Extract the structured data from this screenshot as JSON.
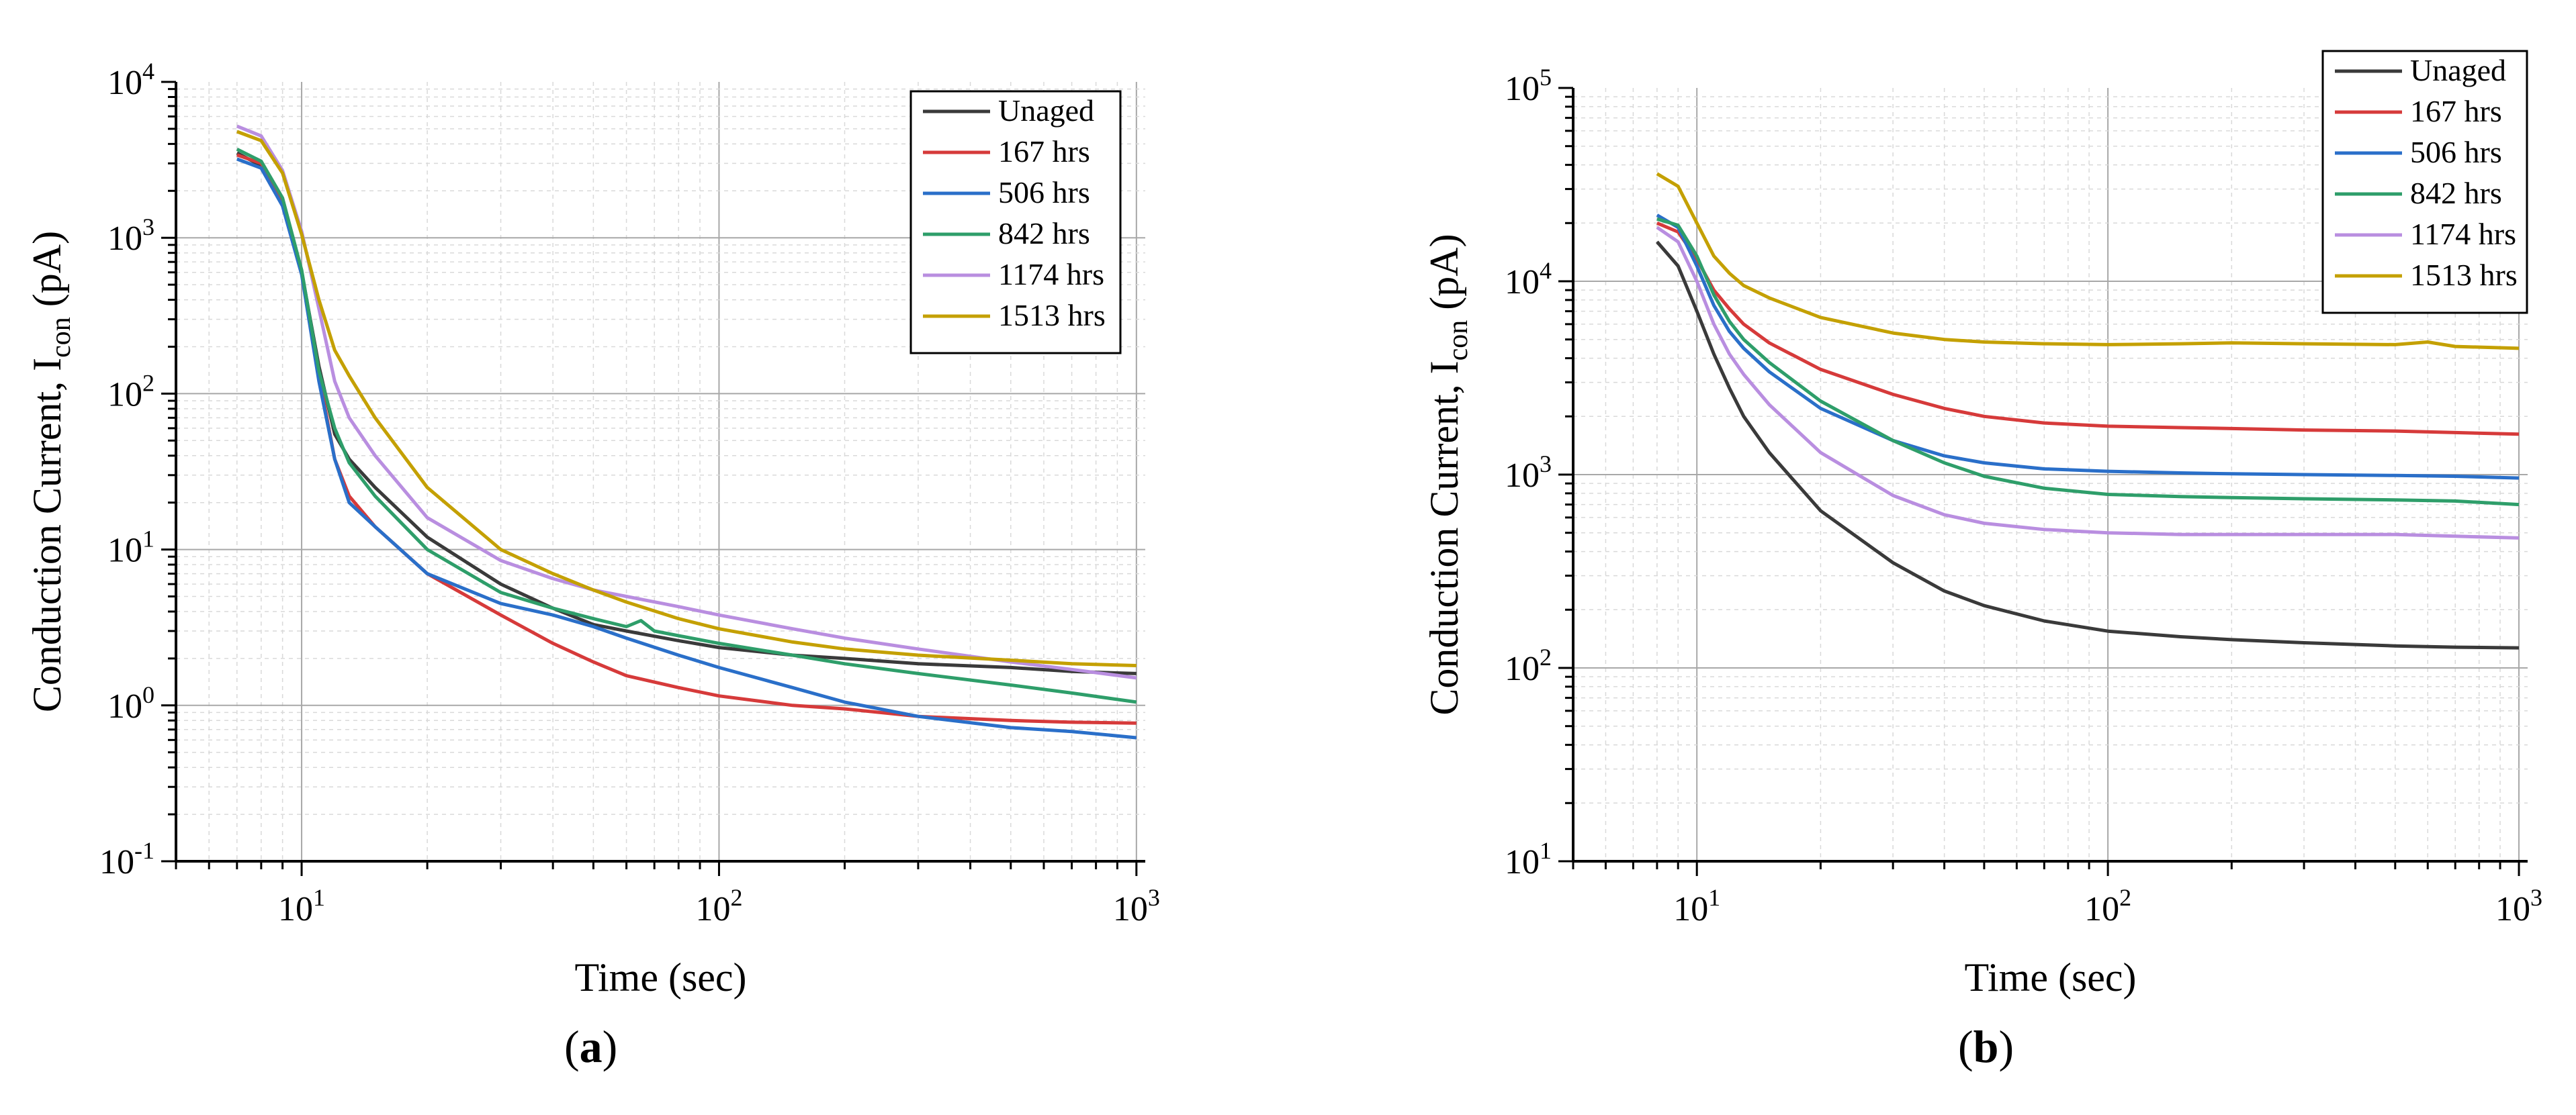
{
  "colors": {
    "Unaged": "#3a3a3a",
    "167 hrs": "#d63a3a",
    "506 hrs": "#2a6fc9",
    "842 hrs": "#2e9e6a",
    "1174 hrs": "#b98ee0",
    "1513 hrs": "#c4a000"
  },
  "chart_data": [
    {
      "type": "line",
      "panel_label": "a",
      "title": "",
      "xlabel": "Time (sec)",
      "ylabel_main": "Conduction Current, I",
      "ylabel_sub": "con",
      "ylabel_unit": " (pA)",
      "xscale": "log",
      "yscale": "log",
      "xlim": [
        5,
        1050
      ],
      "ylim": [
        0.1,
        10000
      ],
      "xticks": [
        {
          "value": 10,
          "base": "10",
          "exp": "1"
        },
        {
          "value": 100,
          "base": "10",
          "exp": "2"
        },
        {
          "value": 1000,
          "base": "10",
          "exp": "3"
        }
      ],
      "yticks": [
        {
          "value": 0.1,
          "base": "10",
          "exp": "-1"
        },
        {
          "value": 1,
          "base": "10",
          "exp": "0"
        },
        {
          "value": 10,
          "base": "10",
          "exp": "1"
        },
        {
          "value": 100,
          "base": "10",
          "exp": "2"
        },
        {
          "value": 1000,
          "base": "10",
          "exp": "3"
        },
        {
          "value": 10000,
          "base": "10",
          "exp": "4"
        }
      ],
      "grid": true,
      "legend_position": "top-right",
      "series": [
        {
          "name": "Unaged",
          "x": [
            7,
            8,
            9,
            10,
            11,
            12,
            13,
            15,
            20,
            30,
            40,
            50,
            60,
            80,
            100,
            150,
            200,
            300,
            500,
            700,
            1000
          ],
          "y": [
            3500,
            2900,
            1700,
            600,
            150,
            55,
            38,
            25,
            12,
            6,
            4.2,
            3.3,
            3.0,
            2.6,
            2.35,
            2.1,
            2.0,
            1.85,
            1.75,
            1.65,
            1.6
          ]
        },
        {
          "name": "167 hrs",
          "x": [
            7,
            8,
            9,
            10,
            11,
            12,
            13,
            15,
            20,
            30,
            40,
            50,
            60,
            80,
            100,
            150,
            200,
            300,
            500,
            700,
            1000
          ],
          "y": [
            3400,
            3000,
            1700,
            600,
            130,
            38,
            22,
            14,
            7,
            3.8,
            2.5,
            1.9,
            1.55,
            1.3,
            1.15,
            1.0,
            0.95,
            0.85,
            0.8,
            0.78,
            0.77
          ]
        },
        {
          "name": "506 hrs",
          "x": [
            7,
            8,
            9,
            10,
            11,
            12,
            13,
            15,
            20,
            30,
            40,
            50,
            60,
            80,
            100,
            150,
            200,
            300,
            500,
            700,
            1000
          ],
          "y": [
            3200,
            2800,
            1600,
            580,
            120,
            38,
            20,
            14,
            7,
            4.5,
            3.8,
            3.2,
            2.7,
            2.1,
            1.75,
            1.3,
            1.05,
            0.85,
            0.72,
            0.68,
            0.62
          ]
        },
        {
          "name": "842 hrs",
          "x": [
            7,
            8,
            9,
            10,
            11,
            12,
            13,
            15,
            20,
            30,
            40,
            50,
            60,
            65,
            70,
            80,
            100,
            150,
            200,
            300,
            500,
            700,
            1000
          ],
          "y": [
            3700,
            3100,
            1800,
            620,
            140,
            60,
            36,
            22,
            10,
            5.3,
            4.2,
            3.6,
            3.2,
            3.5,
            3.0,
            2.8,
            2.5,
            2.1,
            1.85,
            1.6,
            1.35,
            1.2,
            1.05
          ]
        },
        {
          "name": "1174 hrs",
          "x": [
            7,
            8,
            9,
            10,
            11,
            12,
            13,
            15,
            20,
            30,
            40,
            50,
            60,
            80,
            100,
            150,
            200,
            300,
            500,
            700,
            1000
          ],
          "y": [
            5200,
            4500,
            2700,
            1100,
            350,
            120,
            70,
            40,
            16,
            8.5,
            6.5,
            5.5,
            5.0,
            4.3,
            3.8,
            3.1,
            2.7,
            2.3,
            1.9,
            1.7,
            1.5
          ]
        },
        {
          "name": "1513 hrs",
          "x": [
            7,
            8,
            9,
            10,
            11,
            12,
            13,
            15,
            20,
            30,
            40,
            50,
            60,
            80,
            100,
            150,
            200,
            300,
            500,
            700,
            1000
          ],
          "y": [
            4800,
            4200,
            2600,
            1050,
            400,
            190,
            130,
            70,
            25,
            10,
            7,
            5.5,
            4.6,
            3.6,
            3.1,
            2.55,
            2.3,
            2.1,
            1.95,
            1.85,
            1.8
          ]
        }
      ]
    },
    {
      "type": "line",
      "panel_label": "b",
      "title": "",
      "xlabel": "Time (sec)",
      "ylabel_main": "Conduction Current, I",
      "ylabel_sub": "con",
      "ylabel_unit": " (pA)",
      "xscale": "log",
      "yscale": "log",
      "xlim": [
        5,
        1050
      ],
      "ylim": [
        10,
        100000
      ],
      "xticks": [
        {
          "value": 10,
          "base": "10",
          "exp": "1"
        },
        {
          "value": 100,
          "base": "10",
          "exp": "2"
        },
        {
          "value": 1000,
          "base": "10",
          "exp": "3"
        }
      ],
      "yticks": [
        {
          "value": 10,
          "base": "10",
          "exp": "1"
        },
        {
          "value": 100,
          "base": "10",
          "exp": "2"
        },
        {
          "value": 1000,
          "base": "10",
          "exp": "3"
        },
        {
          "value": 10000,
          "base": "10",
          "exp": "4"
        },
        {
          "value": 100000,
          "base": "10",
          "exp": "5"
        }
      ],
      "grid": true,
      "legend_position": "top-right",
      "series": [
        {
          "name": "Unaged",
          "x": [
            8,
            9,
            10,
            11,
            12,
            13,
            15,
            20,
            30,
            40,
            50,
            70,
            100,
            150,
            200,
            300,
            500,
            700,
            1000
          ],
          "y": [
            16000,
            12000,
            7000,
            4200,
            2800,
            2000,
            1300,
            650,
            350,
            250,
            210,
            175,
            155,
            145,
            140,
            135,
            130,
            128,
            127
          ]
        },
        {
          "name": "167 hrs",
          "x": [
            8,
            9,
            10,
            11,
            12,
            13,
            15,
            20,
            30,
            40,
            50,
            70,
            100,
            150,
            200,
            300,
            500,
            700,
            1000
          ],
          "y": [
            20000,
            18000,
            13000,
            9000,
            7200,
            6000,
            4800,
            3500,
            2600,
            2200,
            2000,
            1850,
            1780,
            1750,
            1730,
            1700,
            1680,
            1650,
            1620
          ]
        },
        {
          "name": "506 hrs",
          "x": [
            8,
            9,
            10,
            11,
            12,
            13,
            15,
            20,
            30,
            40,
            50,
            70,
            100,
            150,
            200,
            300,
            500,
            700,
            1000
          ],
          "y": [
            22000,
            19000,
            12000,
            7500,
            5500,
            4500,
            3400,
            2200,
            1500,
            1250,
            1150,
            1070,
            1040,
            1020,
            1010,
            1000,
            990,
            980,
            960
          ]
        },
        {
          "name": "842 hrs",
          "x": [
            8,
            9,
            10,
            11,
            12,
            13,
            15,
            20,
            30,
            40,
            50,
            70,
            100,
            150,
            200,
            300,
            500,
            700,
            1000
          ],
          "y": [
            21000,
            19500,
            13500,
            8500,
            6200,
            5000,
            3800,
            2400,
            1500,
            1150,
            980,
            850,
            790,
            770,
            760,
            750,
            740,
            730,
            700
          ]
        },
        {
          "name": "1174 hrs",
          "x": [
            8,
            9,
            10,
            11,
            12,
            13,
            15,
            20,
            30,
            40,
            50,
            70,
            100,
            150,
            200,
            300,
            500,
            700,
            1000
          ],
          "y": [
            19000,
            16000,
            10000,
            6000,
            4200,
            3300,
            2300,
            1300,
            780,
            620,
            560,
            520,
            500,
            490,
            490,
            490,
            490,
            480,
            470
          ]
        },
        {
          "name": "1513 hrs",
          "x": [
            8,
            9,
            10,
            11,
            12,
            13,
            15,
            20,
            30,
            40,
            50,
            70,
            100,
            150,
            200,
            300,
            500,
            600,
            700,
            1000
          ],
          "y": [
            36000,
            31000,
            20000,
            13500,
            11000,
            9500,
            8200,
            6500,
            5400,
            5000,
            4850,
            4750,
            4700,
            4750,
            4800,
            4750,
            4700,
            4850,
            4600,
            4500
          ]
        }
      ]
    }
  ]
}
